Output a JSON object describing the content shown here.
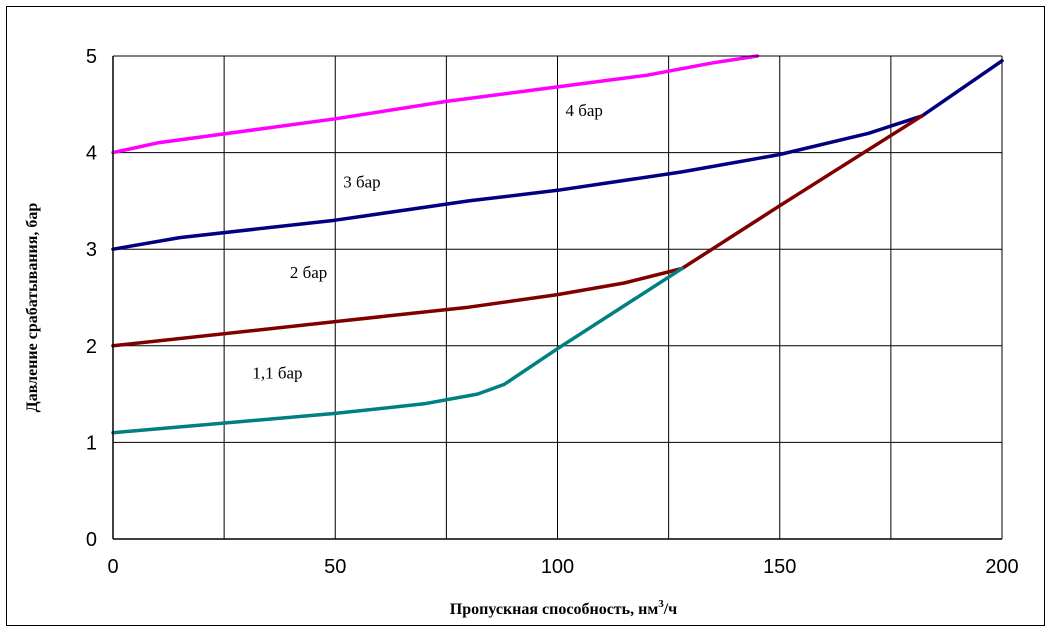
{
  "chart_data": {
    "type": "line",
    "title": "",
    "xlabel": "Пропускная способность, нм",
    "xlabel_sup": "3",
    "xlabel_tail": "/ч",
    "ylabel": "Давление срабатывания, бар",
    "xlim": [
      0,
      200
    ],
    "ylim": [
      0,
      5
    ],
    "x_ticks": [
      0,
      50,
      100,
      150,
      200
    ],
    "y_ticks": [
      0,
      1,
      2,
      3,
      4,
      5
    ],
    "x_tick_labels": [
      "0",
      "50",
      "100",
      "150",
      "200"
    ],
    "y_tick_labels": [
      "0",
      "1",
      "2",
      "3",
      "4",
      "5"
    ],
    "grid": true,
    "legend": "none",
    "series": [
      {
        "name": "4 бар",
        "color": "#ff00ff",
        "points": [
          [
            0,
            4.0
          ],
          [
            10,
            4.1
          ],
          [
            50,
            4.35
          ],
          [
            75,
            4.53
          ],
          [
            100,
            4.68
          ],
          [
            120,
            4.8
          ],
          [
            135,
            4.93
          ],
          [
            145,
            5.0
          ]
        ]
      },
      {
        "name": "3 бар",
        "color": "#000080",
        "points": [
          [
            0,
            3.0
          ],
          [
            15,
            3.12
          ],
          [
            50,
            3.3
          ],
          [
            68,
            3.42
          ],
          [
            80,
            3.5
          ],
          [
            100,
            3.61
          ],
          [
            128,
            3.8
          ],
          [
            150,
            3.98
          ],
          [
            170,
            4.2
          ],
          [
            182,
            4.38
          ],
          [
            200,
            4.95
          ]
        ]
      },
      {
        "name": "2 бар",
        "color": "#800000",
        "points": [
          [
            0,
            2.0
          ],
          [
            50,
            2.25
          ],
          [
            80,
            2.4
          ],
          [
            100,
            2.53
          ],
          [
            115,
            2.65
          ],
          [
            128,
            2.8
          ],
          [
            150,
            3.45
          ],
          [
            182,
            4.38
          ]
        ]
      },
      {
        "name": "1,1 бар",
        "color": "#008080",
        "points": [
          [
            0,
            1.1
          ],
          [
            50,
            1.3
          ],
          [
            70,
            1.4
          ],
          [
            82,
            1.5
          ],
          [
            88,
            1.6
          ],
          [
            100,
            1.97
          ],
          [
            128,
            2.8
          ]
        ]
      }
    ],
    "annotations": [
      {
        "text": "4 бар",
        "x": 106,
        "y": 4.38
      },
      {
        "text": "3 бар",
        "x": 56,
        "y": 3.64
      },
      {
        "text": "2 бар",
        "x": 44,
        "y": 2.7
      },
      {
        "text": "1,1 бар",
        "x": 37,
        "y": 1.66
      }
    ]
  }
}
